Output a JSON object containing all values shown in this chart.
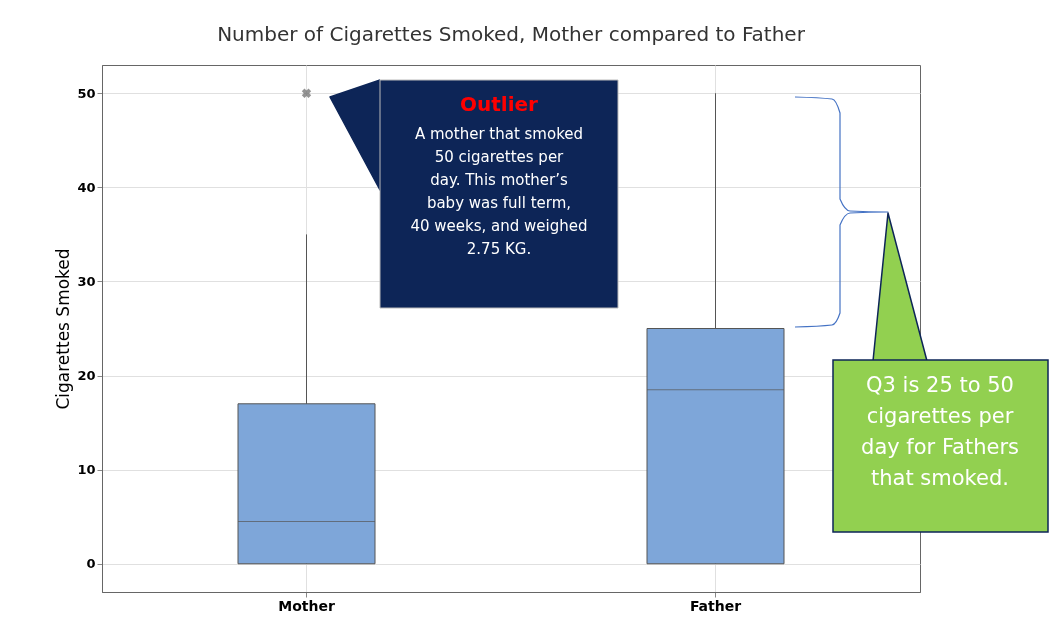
{
  "chart_data": {
    "type": "box",
    "title": "Number of Cigarettes Smoked, Mother compared to Father",
    "ylabel": "Cigarettes Smoked",
    "categories": [
      "Mother",
      "Father"
    ],
    "boxes": [
      {
        "low": 0,
        "q1": 0,
        "median": 4.5,
        "q3": 17,
        "high": 35,
        "outliers": [
          50
        ]
      },
      {
        "low": 0,
        "q1": 0,
        "median": 18.5,
        "q3": 25,
        "high": 50
      }
    ],
    "color": "#7ea6d9",
    "ylim": [
      -3,
      53
    ],
    "yticks": [
      0,
      10,
      20,
      30,
      40,
      50
    ],
    "grid": true,
    "annotations": [
      "Outlier",
      "A mother that smoked 50 cigarettes per day. This mother’s baby was full term, 40 weeks, and weighed 2.75 KG.",
      "Q3 is 25 to 50 cigarettes per day for Fathers that smoked."
    ]
  }
}
